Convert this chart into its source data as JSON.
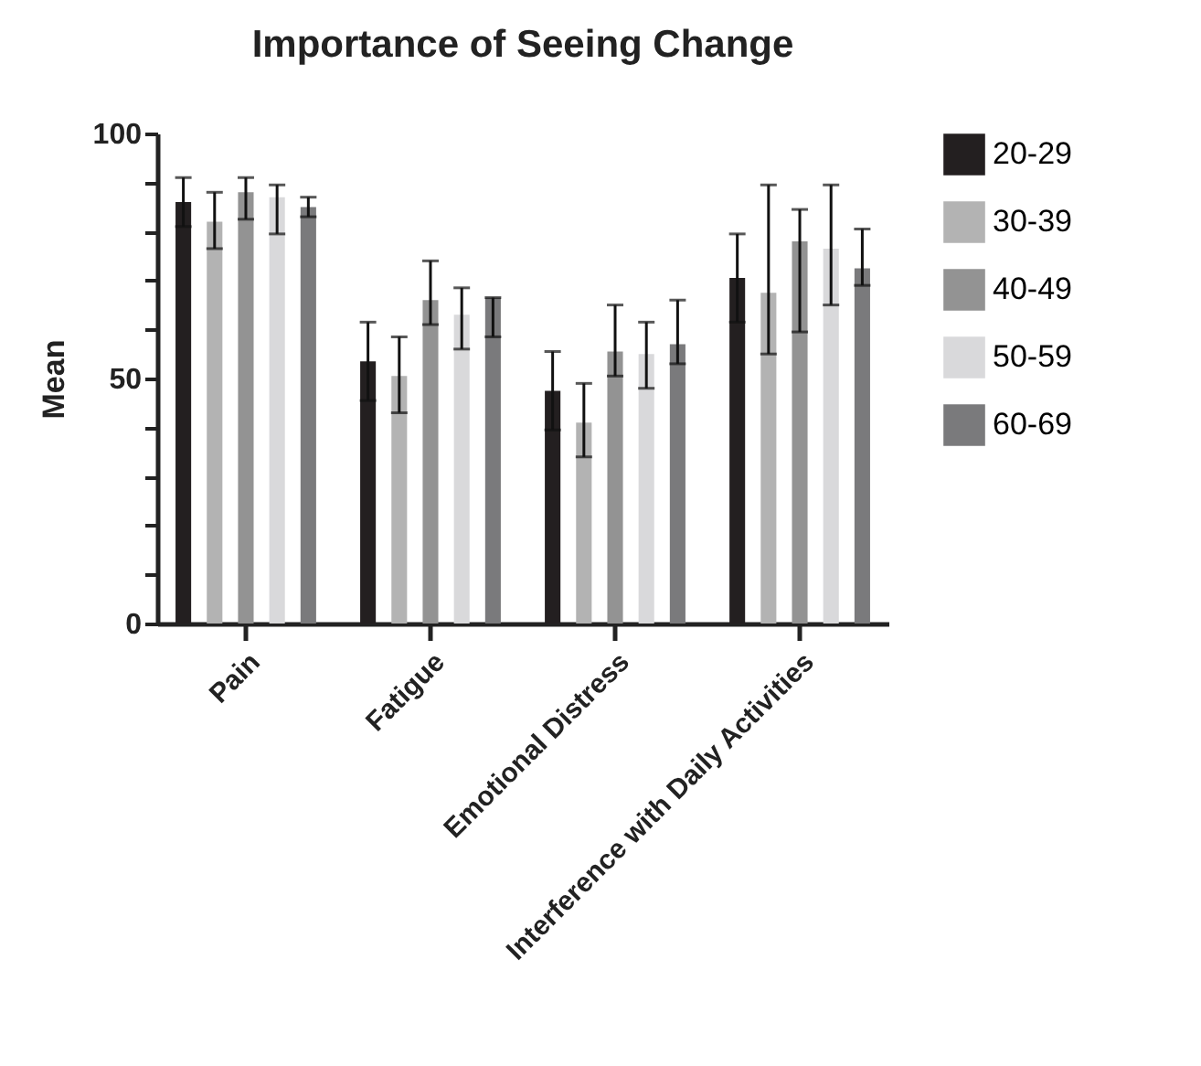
{
  "chart_data": {
    "type": "bar",
    "title": "Importance of Seeing Change",
    "ylabel": "Mean",
    "categories": [
      "Pain",
      "Fatigue",
      "Emotional Distress",
      "Interference with Daily Activities"
    ],
    "series": [
      {
        "name": "20-29",
        "color": "#231f20",
        "values": [
          86,
          53.5,
          47.5,
          70.5
        ],
        "errors": [
          5,
          8,
          8,
          9
        ]
      },
      {
        "name": "30-39",
        "color": "#b3b3b3",
        "values": [
          82,
          50.5,
          41,
          67.5
        ],
        "errors": [
          [
            76.5,
            88
          ],
          [
            43,
            58.5
          ],
          [
            34,
            49
          ],
          [
            55,
            89.5
          ]
        ]
      },
      {
        "name": "40-49",
        "color": "#939393",
        "values": [
          88,
          66,
          55.5,
          78
        ],
        "errors": [
          [
            82.5,
            91
          ],
          [
            61,
            74
          ],
          [
            50.5,
            65
          ],
          [
            59.5,
            84.5
          ]
        ]
      },
      {
        "name": "50-59",
        "color": "#d9d9db",
        "values": [
          87,
          63,
          55,
          76.5
        ],
        "errors": [
          [
            79.5,
            89.5
          ],
          [
            56,
            68.5
          ],
          [
            48,
            61.5
          ],
          [
            65,
            89.5
          ]
        ]
      },
      {
        "name": "60-69",
        "color": "#7a7a7c",
        "values": [
          85,
          66.5,
          57,
          72.5
        ],
        "errors": [
          [
            83,
            87
          ],
          [
            58.5,
            66.5
          ],
          [
            53,
            66
          ],
          [
            69,
            80.5
          ]
        ]
      }
    ],
    "ylim": [
      0,
      100
    ],
    "yticks": [
      0,
      {
        "value": 10,
        "label": null
      },
      {
        "value": 20,
        "label": null
      },
      {
        "value": 30,
        "label": null
      },
      {
        "value": 40,
        "label": null
      },
      50,
      {
        "value": 60,
        "label": null
      },
      {
        "value": 70,
        "label": null
      },
      {
        "value": 80,
        "label": null
      },
      {
        "value": 90,
        "label": null
      },
      100
    ],
    "grid": false,
    "legend": "right"
  }
}
